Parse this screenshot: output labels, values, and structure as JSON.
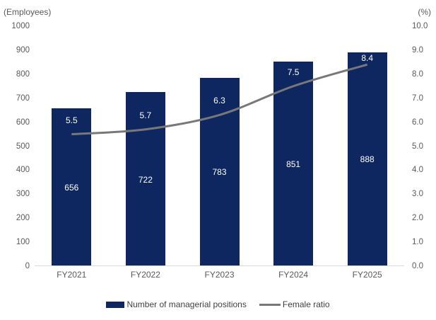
{
  "chart_data": {
    "type": "bar",
    "subtype": "bar-line-combo",
    "categories": [
      "FY2021",
      "FY2022",
      "FY2023",
      "FY2024",
      "FY2025"
    ],
    "series": [
      {
        "name": "Number of managerial positions",
        "type": "bar",
        "axis": "left",
        "values": [
          656,
          722,
          783,
          851,
          888
        ],
        "color": "#0E2760"
      },
      {
        "name": "Female ratio",
        "type": "line",
        "axis": "right",
        "values": [
          5.5,
          5.7,
          6.3,
          7.5,
          8.4
        ],
        "color": "#787878",
        "smooth": true
      }
    ],
    "left_axis": {
      "label": "(Employees)",
      "min": 0,
      "max": 1000,
      "step": 100,
      "decimals": 0
    },
    "right_axis": {
      "label": "(%)",
      "min": 0,
      "max": 10,
      "step": 1,
      "decimals": 1
    },
    "grid": false,
    "legend_position": "bottom"
  }
}
